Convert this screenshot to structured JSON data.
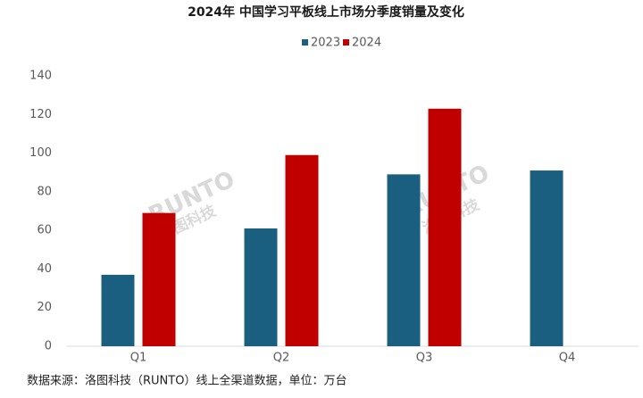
{
  "chart_data": {
    "type": "bar",
    "title": "2024年 中国学习平板线上市场分季度销量及变化",
    "categories": [
      "Q1",
      "Q2",
      "Q3",
      "Q4"
    ],
    "series": [
      {
        "name": "2023",
        "color": "#1a5e80",
        "values": [
          37,
          61,
          89,
          91
        ]
      },
      {
        "name": "2024",
        "color": "#c00000",
        "values": [
          69,
          99,
          123,
          null
        ]
      }
    ],
    "ylim": [
      0,
      140
    ],
    "yticks": [
      0,
      20,
      40,
      60,
      80,
      100,
      120,
      140
    ],
    "grid": false,
    "legend": "top",
    "watermark": [
      "RUNTO",
      "洛图科技"
    ],
    "source": "数据来源：洛图科技（RUNTO）线上全渠道数据，单位：万台"
  }
}
